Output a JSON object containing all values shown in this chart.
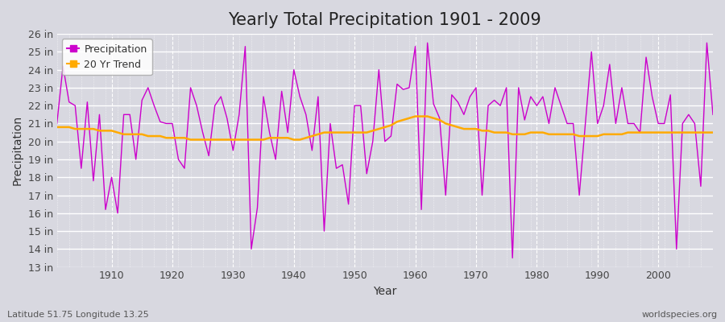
{
  "title": "Yearly Total Precipitation 1901 - 2009",
  "xlabel": "Year",
  "ylabel": "Precipitation",
  "bottom_left_label": "Latitude 51.75 Longitude 13.25",
  "bottom_right_label": "worldspecies.org",
  "legend_labels": [
    "Precipitation",
    "20 Yr Trend"
  ],
  "precip_color": "#cc00cc",
  "trend_color": "#ffaa00",
  "bg_color": "#d8d8e0",
  "plot_bg_color": "#d8d8e0",
  "ylim": [
    13,
    26
  ],
  "yticks": [
    13,
    14,
    15,
    16,
    17,
    18,
    19,
    20,
    21,
    22,
    23,
    24,
    25,
    26
  ],
  "ytick_labels": [
    "13 in",
    "14 in",
    "15 in",
    "16 in",
    "17 in",
    "18 in",
    "19 in",
    "20 in",
    "21 in",
    "22 in",
    "23 in",
    "24 in",
    "25 in",
    "26 in"
  ],
  "xticks": [
    1910,
    1920,
    1930,
    1940,
    1950,
    1960,
    1970,
    1980,
    1990,
    2000
  ],
  "years": [
    1901,
    1902,
    1903,
    1904,
    1905,
    1906,
    1907,
    1908,
    1909,
    1910,
    1911,
    1912,
    1913,
    1914,
    1915,
    1916,
    1917,
    1918,
    1919,
    1920,
    1921,
    1922,
    1923,
    1924,
    1925,
    1926,
    1927,
    1928,
    1929,
    1930,
    1931,
    1932,
    1933,
    1934,
    1935,
    1936,
    1937,
    1938,
    1939,
    1940,
    1941,
    1942,
    1943,
    1944,
    1945,
    1946,
    1947,
    1948,
    1949,
    1950,
    1951,
    1952,
    1953,
    1954,
    1955,
    1956,
    1957,
    1958,
    1959,
    1960,
    1961,
    1962,
    1963,
    1964,
    1965,
    1966,
    1967,
    1968,
    1969,
    1970,
    1971,
    1972,
    1973,
    1974,
    1975,
    1976,
    1977,
    1978,
    1979,
    1980,
    1981,
    1982,
    1983,
    1984,
    1985,
    1986,
    1987,
    1988,
    1989,
    1990,
    1991,
    1992,
    1993,
    1994,
    1995,
    1996,
    1997,
    1998,
    1999,
    2000,
    2001,
    2002,
    2003,
    2004,
    2005,
    2006,
    2007,
    2008,
    2009
  ],
  "precipitation": [
    21.0,
    24.2,
    22.2,
    22.0,
    18.5,
    22.2,
    17.8,
    21.5,
    16.2,
    18.0,
    16.0,
    21.5,
    21.5,
    19.0,
    22.3,
    23.0,
    22.0,
    21.1,
    21.0,
    21.0,
    19.0,
    18.5,
    23.0,
    22.0,
    20.5,
    19.2,
    22.0,
    22.5,
    21.3,
    19.5,
    21.5,
    25.3,
    14.0,
    16.3,
    22.5,
    20.5,
    19.0,
    22.8,
    20.5,
    24.0,
    22.5,
    21.5,
    19.5,
    22.5,
    15.0,
    21.0,
    18.5,
    18.7,
    16.5,
    22.0,
    22.0,
    18.2,
    20.0,
    24.0,
    20.0,
    20.3,
    23.2,
    22.9,
    23.0,
    25.3,
    16.2,
    25.5,
    22.1,
    21.3,
    17.0,
    22.6,
    22.2,
    21.5,
    22.5,
    23.0,
    17.0,
    22.0,
    22.3,
    22.0,
    23.0,
    13.5,
    23.0,
    21.2,
    22.5,
    22.0,
    22.5,
    21.0,
    23.0,
    22.0,
    21.0,
    21.0,
    17.0,
    21.0,
    25.0,
    21.0,
    22.0,
    24.3,
    21.0,
    23.0,
    21.0,
    21.0,
    20.5,
    24.7,
    22.5,
    21.0,
    21.0,
    22.6,
    14.0,
    21.0,
    21.5,
    21.0,
    17.5,
    25.5,
    21.5
  ],
  "trend": [
    20.8,
    20.8,
    20.8,
    20.7,
    20.7,
    20.7,
    20.7,
    20.6,
    20.6,
    20.6,
    20.5,
    20.4,
    20.4,
    20.4,
    20.4,
    20.3,
    20.3,
    20.3,
    20.2,
    20.2,
    20.2,
    20.2,
    20.1,
    20.1,
    20.1,
    20.1,
    20.1,
    20.1,
    20.1,
    20.1,
    20.1,
    20.1,
    20.1,
    20.1,
    20.1,
    20.2,
    20.2,
    20.2,
    20.2,
    20.1,
    20.1,
    20.2,
    20.3,
    20.4,
    20.5,
    20.5,
    20.5,
    20.5,
    20.5,
    20.5,
    20.5,
    20.5,
    20.6,
    20.7,
    20.8,
    20.9,
    21.1,
    21.2,
    21.3,
    21.4,
    21.4,
    21.4,
    21.3,
    21.2,
    21.0,
    20.9,
    20.8,
    20.7,
    20.7,
    20.7,
    20.6,
    20.6,
    20.5,
    20.5,
    20.5,
    20.4,
    20.4,
    20.4,
    20.5,
    20.5,
    20.5,
    20.4,
    20.4,
    20.4,
    20.4,
    20.4,
    20.3,
    20.3,
    20.3,
    20.3,
    20.4,
    20.4,
    20.4,
    20.4,
    20.5,
    20.5,
    20.5,
    20.5,
    20.5,
    20.5,
    20.5,
    20.5,
    20.5,
    20.5,
    20.5,
    20.5,
    20.5,
    20.5,
    20.5
  ],
  "title_fontsize": 15,
  "axis_label_fontsize": 10,
  "tick_fontsize": 9,
  "legend_fontsize": 9
}
